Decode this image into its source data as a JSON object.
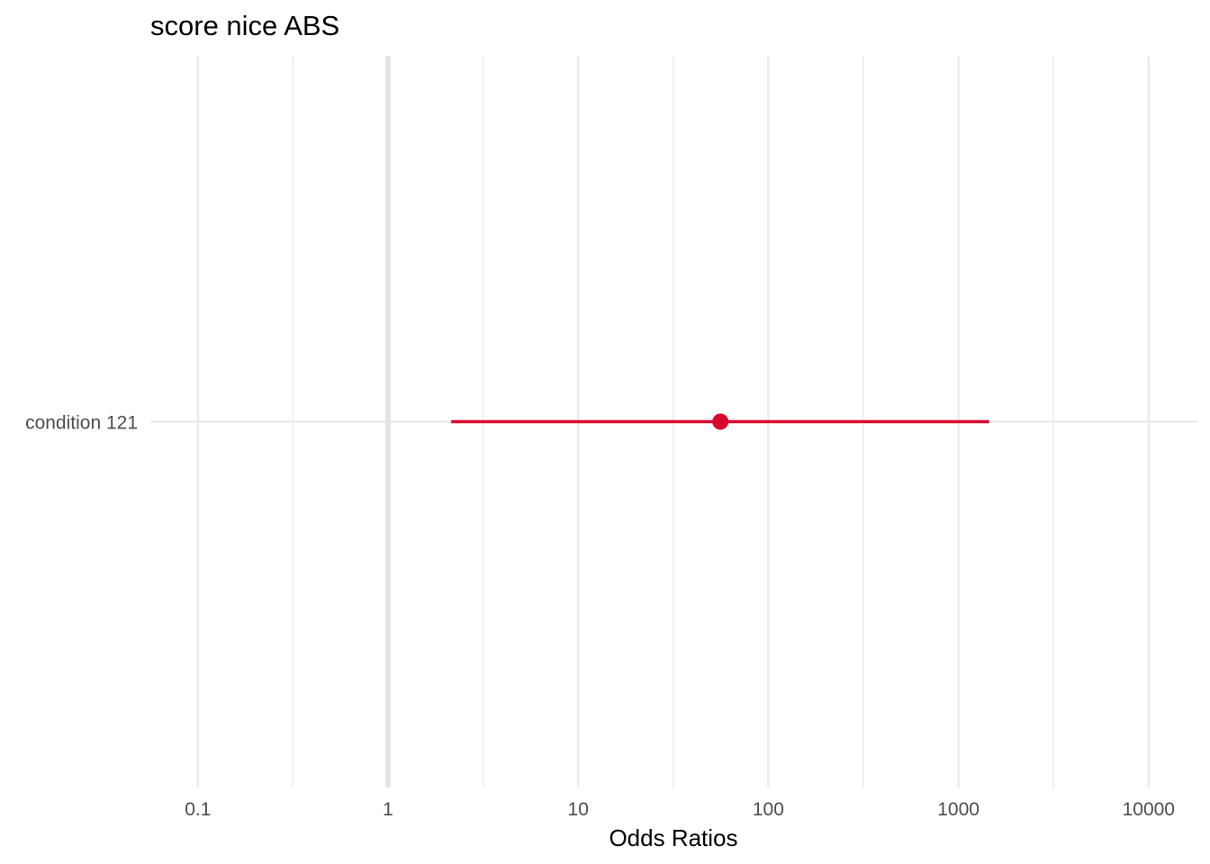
{
  "chart_data": {
    "type": "forest",
    "title": "score nice ABS",
    "xlabel": "Odds Ratios",
    "ylabel": "",
    "x_scale": "log10",
    "xlim": [
      0.07,
      15000
    ],
    "x_ticks": [
      0.1,
      1,
      10,
      100,
      1000,
      10000
    ],
    "x_tick_labels": [
      "0.1",
      "1",
      "10",
      "100",
      "1000",
      "10000"
    ],
    "minor_x_ticks": [
      0.316,
      3.16,
      31.6,
      316,
      3160
    ],
    "reference_line": 1,
    "grid": true,
    "terms": [
      {
        "label": "condition 121",
        "estimate": 56,
        "conf_low": 2.15,
        "conf_high": 1450
      }
    ]
  },
  "colors": {
    "point": "#d7082a",
    "grid": "#ebebeb",
    "reference": "#e5e5e5",
    "text": "#000000",
    "tick_text": "#4d4d4d"
  }
}
